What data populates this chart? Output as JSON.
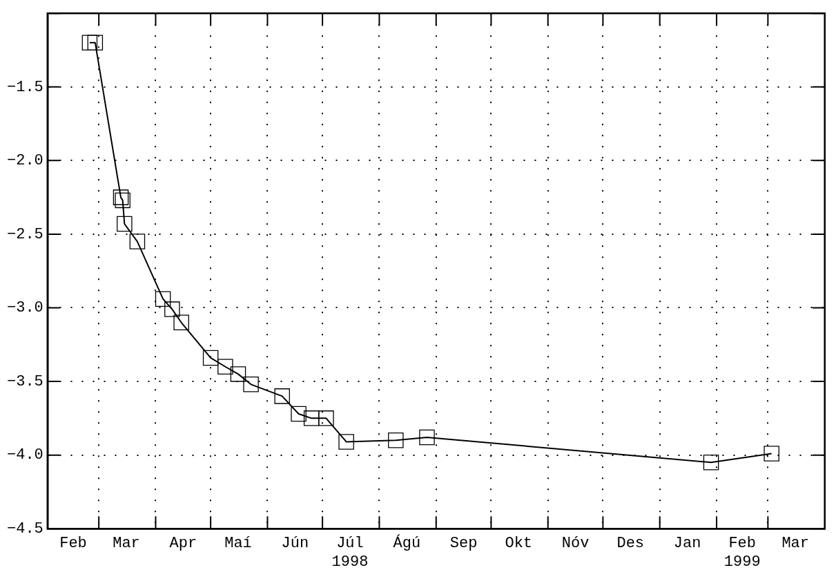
{
  "chart_data": {
    "type": "line",
    "x": [
      "1998-02-24",
      "1998-02-27",
      "1998-03-13",
      "1998-03-14",
      "1998-03-15",
      "1998-03-22",
      "1998-04-05",
      "1998-04-10",
      "1998-04-15",
      "1998-05-01",
      "1998-05-09",
      "1998-05-16",
      "1998-05-23",
      "1998-06-09",
      "1998-06-18",
      "1998-06-25",
      "1998-07-03",
      "1998-07-14",
      "1998-08-10",
      "1998-08-27",
      "1999-01-29",
      "1999-03-03"
    ],
    "series": [
      {
        "color": "#000000",
        "values": [
          -1.2,
          -1.2,
          -2.25,
          -2.27,
          -2.43,
          -2.55,
          -2.94,
          -3.01,
          -3.1,
          -3.34,
          -3.4,
          -3.45,
          -3.52,
          -3.6,
          -3.72,
          -3.75,
          -3.75,
          -3.91,
          -3.9,
          -3.88,
          -4.05,
          -3.99
        ]
      }
    ],
    "xlim": [
      "1998-02-01",
      "1999-04-01"
    ],
    "xticks": [
      {
        "value": "1998-02-15",
        "label": "Feb"
      },
      {
        "value": "1998-03-01",
        "label": null
      },
      {
        "value": "1998-03-16",
        "label": "Mar"
      },
      {
        "value": "1998-04-01",
        "label": null
      },
      {
        "value": "1998-04-16",
        "label": "Apr"
      },
      {
        "value": "1998-05-01",
        "label": null
      },
      {
        "value": "1998-05-16",
        "label": "Maí"
      },
      {
        "value": "1998-06-01",
        "label": null
      },
      {
        "value": "1998-06-16",
        "label": "Jún"
      },
      {
        "value": "1998-07-01",
        "label": null
      },
      {
        "value": "1998-07-16",
        "label": "Júl\n1998"
      },
      {
        "value": "1998-08-01",
        "label": null
      },
      {
        "value": "1998-08-16",
        "label": "Ágú"
      },
      {
        "value": "1998-09-01",
        "label": null
      },
      {
        "value": "1998-09-16",
        "label": "Sep"
      },
      {
        "value": "1998-10-01",
        "label": null
      },
      {
        "value": "1998-10-16",
        "label": "Okt"
      },
      {
        "value": "1998-11-01",
        "label": null
      },
      {
        "value": "1998-11-16",
        "label": "Nóv"
      },
      {
        "value": "1998-12-01",
        "label": null
      },
      {
        "value": "1998-12-16",
        "label": "Des"
      },
      {
        "value": "1999-01-01",
        "label": null
      },
      {
        "value": "1999-01-16",
        "label": "Jan"
      },
      {
        "value": "1999-02-01",
        "label": null
      },
      {
        "value": "1999-02-15",
        "label": "Feb\n1999"
      },
      {
        "value": "1999-03-01",
        "label": null
      },
      {
        "value": "1999-03-16",
        "label": "Mar"
      }
    ],
    "ylim": [
      -4.5,
      -1.0
    ],
    "yticks": [
      {
        "value": -4.5,
        "label": "−4.5"
      },
      {
        "value": -4.0,
        "label": "−4.0"
      },
      {
        "value": -3.5,
        "label": "−3.5"
      },
      {
        "value": -3.0,
        "label": "−3.0"
      },
      {
        "value": -2.5,
        "label": "−2.5"
      },
      {
        "value": -2.0,
        "label": "−2.0"
      },
      {
        "value": -1.5,
        "label": "−1.5"
      },
      {
        "value": -1.0,
        "label": null
      }
    ],
    "grid": true,
    "legend": false,
    "marker": "square",
    "line_style": "solid"
  }
}
